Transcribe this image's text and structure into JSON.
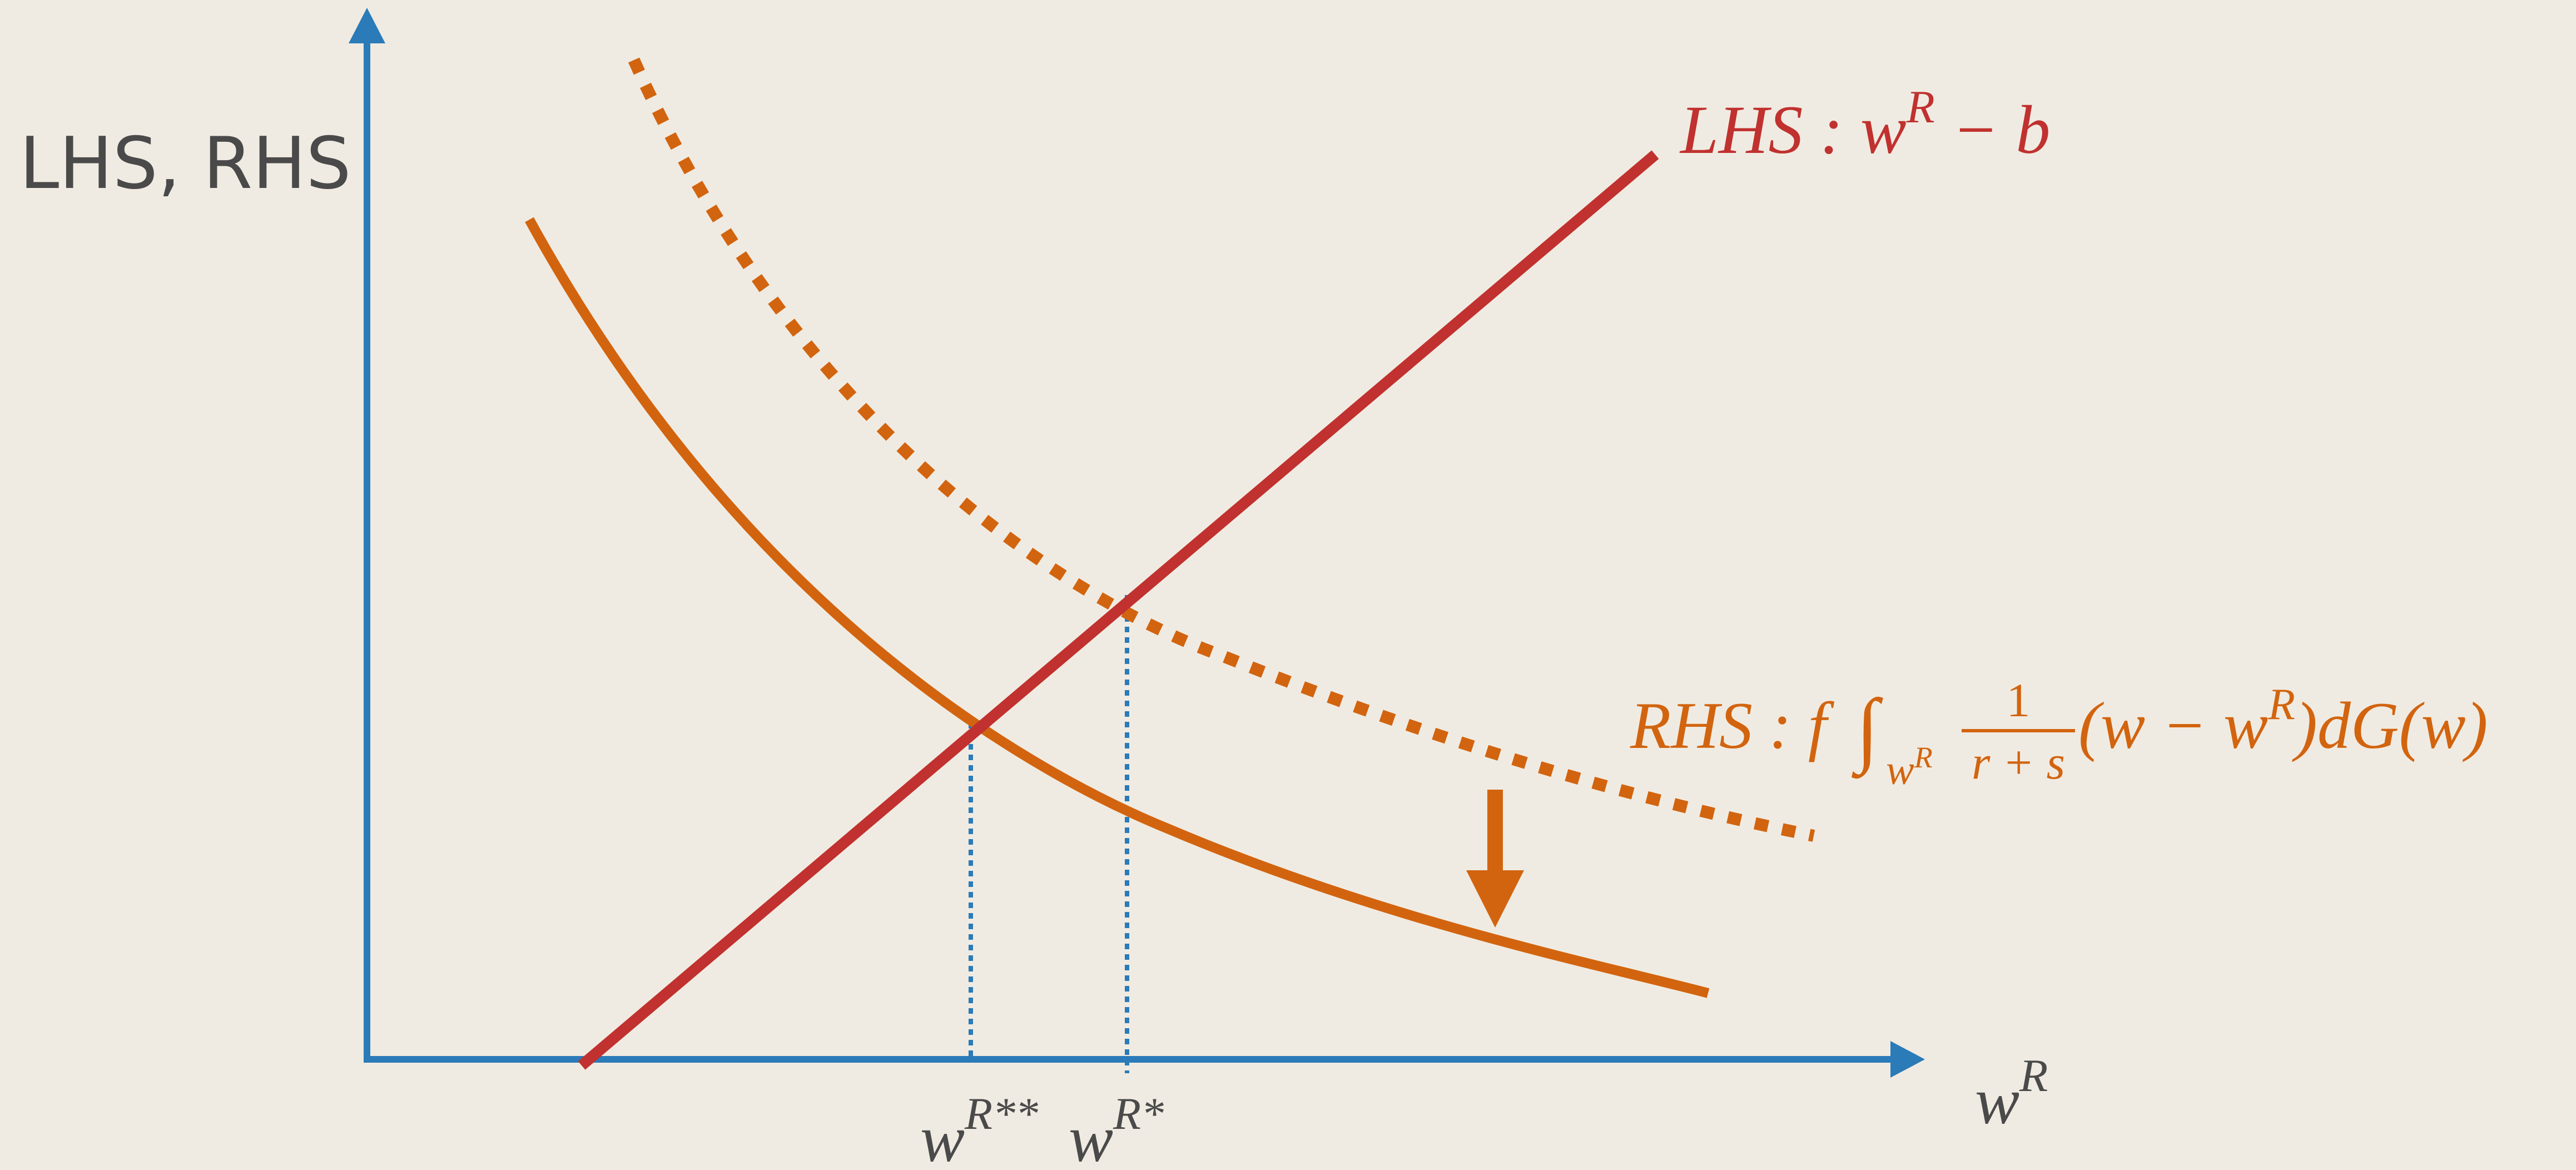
{
  "y_axis_label": "LHS, RHS",
  "x_axis_label": {
    "base": "w",
    "sup": "R"
  },
  "lhs_label": {
    "prefix": "LHS : ",
    "w": "w",
    "sup": "R",
    "suffix": " − b"
  },
  "rhs_label": {
    "prefix": "RHS : f",
    "integral": "∫",
    "lower_limit": "w",
    "lower_limit_sup": "R",
    "frac_num": "1",
    "frac_den": "r + s",
    "tail_a": "(w − w",
    "tail_sup": "R",
    "tail_b": ")dG(w)"
  },
  "tick_double_star": {
    "base": "w",
    "sup": "R**"
  },
  "tick_star": {
    "base": "w",
    "sup": "R*"
  },
  "colors": {
    "axis": "#2a7bb8",
    "lhs": "#c0312f",
    "rhs": "#d2640f",
    "text": "#4a4a4a",
    "guide": "#2a7bb8",
    "background": "#f0ebe2"
  }
}
